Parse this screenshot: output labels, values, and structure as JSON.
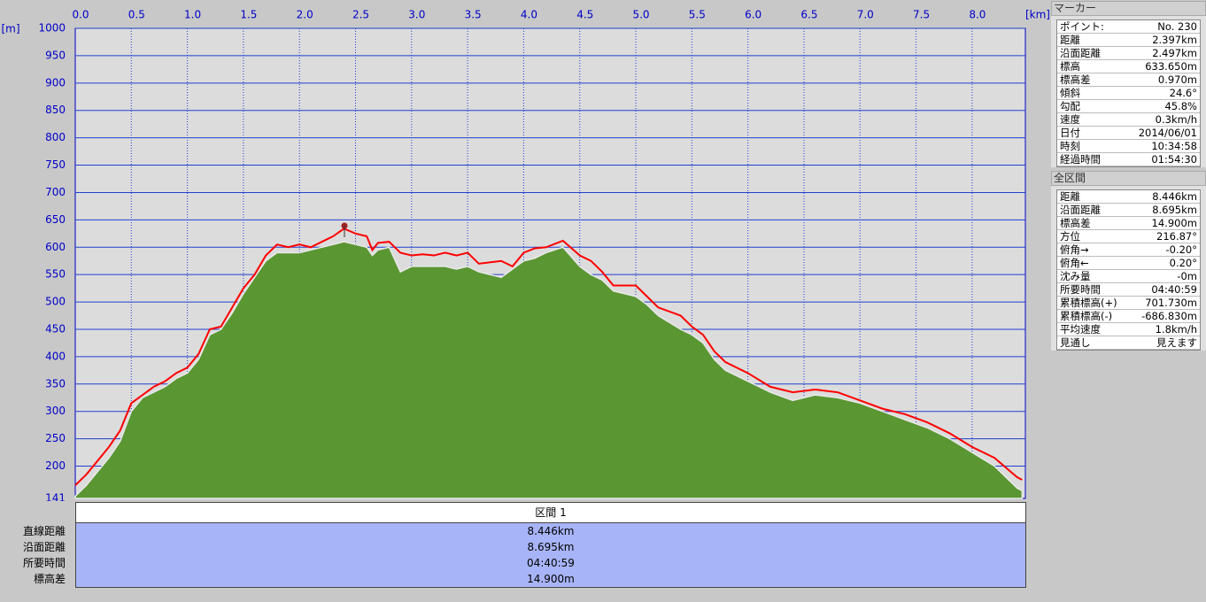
{
  "chart_data": {
    "type": "area",
    "x_label": "[km]",
    "y_label": "[m]",
    "x": [
      0,
      0.1,
      0.2,
      0.3,
      0.4,
      0.5,
      0.6,
      0.7,
      0.8,
      0.9,
      1.0,
      1.1,
      1.2,
      1.3,
      1.4,
      1.5,
      1.6,
      1.7,
      1.8,
      1.9,
      2.0,
      2.1,
      2.2,
      2.3,
      2.397,
      2.5,
      2.6,
      2.65,
      2.7,
      2.8,
      2.9,
      3.0,
      3.1,
      3.2,
      3.3,
      3.4,
      3.5,
      3.6,
      3.8,
      3.9,
      4.0,
      4.1,
      4.2,
      4.35,
      4.5,
      4.6,
      4.7,
      4.8,
      5.0,
      5.1,
      5.2,
      5.4,
      5.5,
      5.6,
      5.7,
      5.8,
      6.0,
      6.2,
      6.4,
      6.6,
      6.8,
      7.0,
      7.2,
      7.4,
      7.6,
      7.8,
      8.0,
      8.2,
      8.4,
      8.446
    ],
    "series": [
      {
        "kind": "area",
        "color": "#5a9632",
        "values": [
          145,
          165,
          190,
          215,
          245,
          300,
          325,
          335,
          345,
          360,
          370,
          395,
          440,
          450,
          480,
          515,
          545,
          575,
          590,
          590,
          590,
          595,
          600,
          605,
          610,
          605,
          600,
          585,
          595,
          600,
          555,
          565,
          565,
          565,
          565,
          560,
          565,
          555,
          545,
          560,
          575,
          580,
          590,
          600,
          565,
          550,
          540,
          520,
          510,
          495,
          475,
          450,
          440,
          425,
          395,
          375,
          355,
          335,
          320,
          330,
          325,
          315,
          300,
          285,
          270,
          250,
          225,
          200,
          160,
          155
        ]
      },
      {
        "kind": "line",
        "color": "#ff0000",
        "values": [
          165,
          185,
          210,
          235,
          265,
          315,
          330,
          345,
          355,
          370,
          380,
          405,
          450,
          455,
          490,
          525,
          550,
          585,
          605,
          600,
          605,
          600,
          610,
          620,
          634,
          625,
          620,
          595,
          608,
          610,
          590,
          585,
          587,
          585,
          590,
          585,
          590,
          570,
          575,
          565,
          590,
          598,
          600,
          612,
          585,
          575,
          555,
          530,
          530,
          510,
          490,
          475,
          455,
          440,
          410,
          390,
          370,
          345,
          335,
          340,
          335,
          320,
          305,
          295,
          280,
          260,
          235,
          215,
          180,
          175
        ]
      }
    ],
    "xlim": [
      0,
      8.475
    ],
    "xticks": [
      {
        "value": 0,
        "label": "0.0"
      },
      0.5,
      {
        "value": 1,
        "label": "1.0"
      },
      1.5,
      {
        "value": 2,
        "label": "2.0"
      },
      2.5,
      {
        "value": 3,
        "label": "3.0"
      },
      3.5,
      {
        "value": 4,
        "label": "4.0"
      },
      4.5,
      {
        "value": 5,
        "label": "5.0"
      },
      5.5,
      {
        "value": 6,
        "label": "6.0"
      },
      6.5,
      {
        "value": 7,
        "label": "7.0"
      },
      7.5,
      {
        "value": 8,
        "label": "8.0"
      }
    ],
    "ylim": [
      141,
      1000
    ],
    "yticks": [
      141,
      200,
      250,
      300,
      350,
      400,
      450,
      500,
      550,
      600,
      650,
      700,
      750,
      800,
      850,
      900,
      950,
      1000
    ],
    "grid": true
  },
  "segment_table": {
    "header": "区間 1",
    "rows": [
      [
        "直線距離",
        "8.446km"
      ],
      [
        "沿面距離",
        "8.695km"
      ],
      [
        "所要時間",
        "04:40:59"
      ],
      [
        "標高差",
        "14.900m"
      ]
    ]
  },
  "marker_panel": {
    "title": "マーカー",
    "rows": [
      [
        "ポイント:",
        "No. 230"
      ],
      [
        "距離",
        "2.397km"
      ],
      [
        "沿面距離",
        "2.497km"
      ],
      [
        "標高",
        "633.650m"
      ],
      [
        "標高差",
        "0.970m"
      ],
      [
        "傾斜",
        "24.6°"
      ],
      [
        "勾配",
        "45.8%"
      ],
      [
        "速度",
        "0.3km/h"
      ],
      [
        "日付",
        "2014/06/01"
      ],
      [
        "時刻",
        "10:34:58"
      ],
      [
        "経過時間",
        "01:54:30"
      ]
    ]
  },
  "total_panel": {
    "title": "全区間",
    "rows": [
      [
        "距離",
        "8.446km"
      ],
      [
        "沿面距離",
        "8.695km"
      ],
      [
        "標高差",
        "14.900m"
      ],
      [
        "方位",
        "216.87°"
      ],
      [
        "俯角→",
        "-0.20°"
      ],
      [
        "俯角←",
        "0.20°"
      ],
      [
        "沈み量",
        "-0m"
      ],
      [
        "所要時間",
        "04:40:59"
      ],
      [
        "累積標高(+)",
        "701.730m"
      ],
      [
        "累積標高(-)",
        "-686.830m"
      ],
      [
        "平均速度",
        "1.8km/h"
      ],
      [
        "見通し",
        "見えます"
      ]
    ]
  }
}
